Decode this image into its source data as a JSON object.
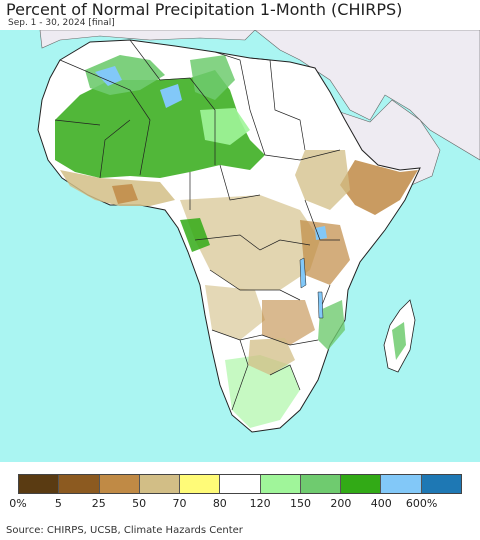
{
  "title": "Percent of Normal Precipitation 1-Month (CHIRPS)",
  "subtitle": "Sep. 1 - 30, 2024 [final]",
  "source": "Source: CHIRPS, UCSB, Climate Hazards Center",
  "legend": {
    "colors": [
      "#5a3b12",
      "#8c5a20",
      "#c08a45",
      "#d2be86",
      "#fffb78",
      "#ffffff",
      "#a0f59a",
      "#6fcb6f",
      "#32aa16",
      "#82c8f8",
      "#1e78b4"
    ],
    "ticks": [
      "0%",
      "5",
      "25",
      "50",
      "70",
      "80",
      "120",
      "150",
      "200",
      "400",
      "600%"
    ]
  },
  "map_colors": {
    "ocean": "#aaf5f2",
    "land_base": "#ffffff",
    "no_data": "#eeebf2",
    "border": "#222222"
  }
}
